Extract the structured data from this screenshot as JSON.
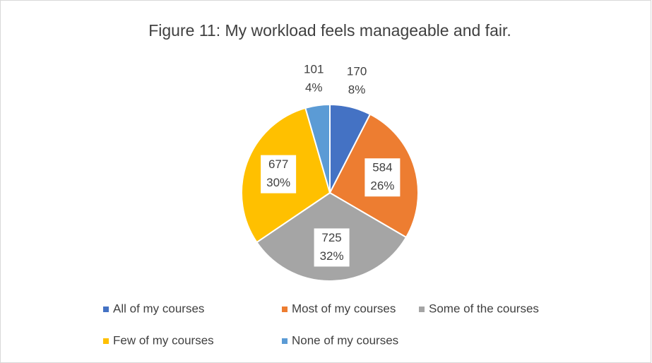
{
  "chart_data": {
    "type": "pie",
    "title": "Figure 11: My workload feels manageable and fair.",
    "categories": [
      "All of my courses",
      "Most of my courses",
      "Some of the courses",
      "Few of my courses",
      "None of my courses"
    ],
    "values": [
      170,
      584,
      725,
      677,
      101
    ],
    "percent_labels": [
      "8%",
      "26%",
      "32%",
      "30%",
      "4%"
    ],
    "colors": [
      "#4472c4",
      "#ed7d31",
      "#a5a5a5",
      "#ffc000",
      "#5b9bd5"
    ],
    "legend": "bottom"
  }
}
